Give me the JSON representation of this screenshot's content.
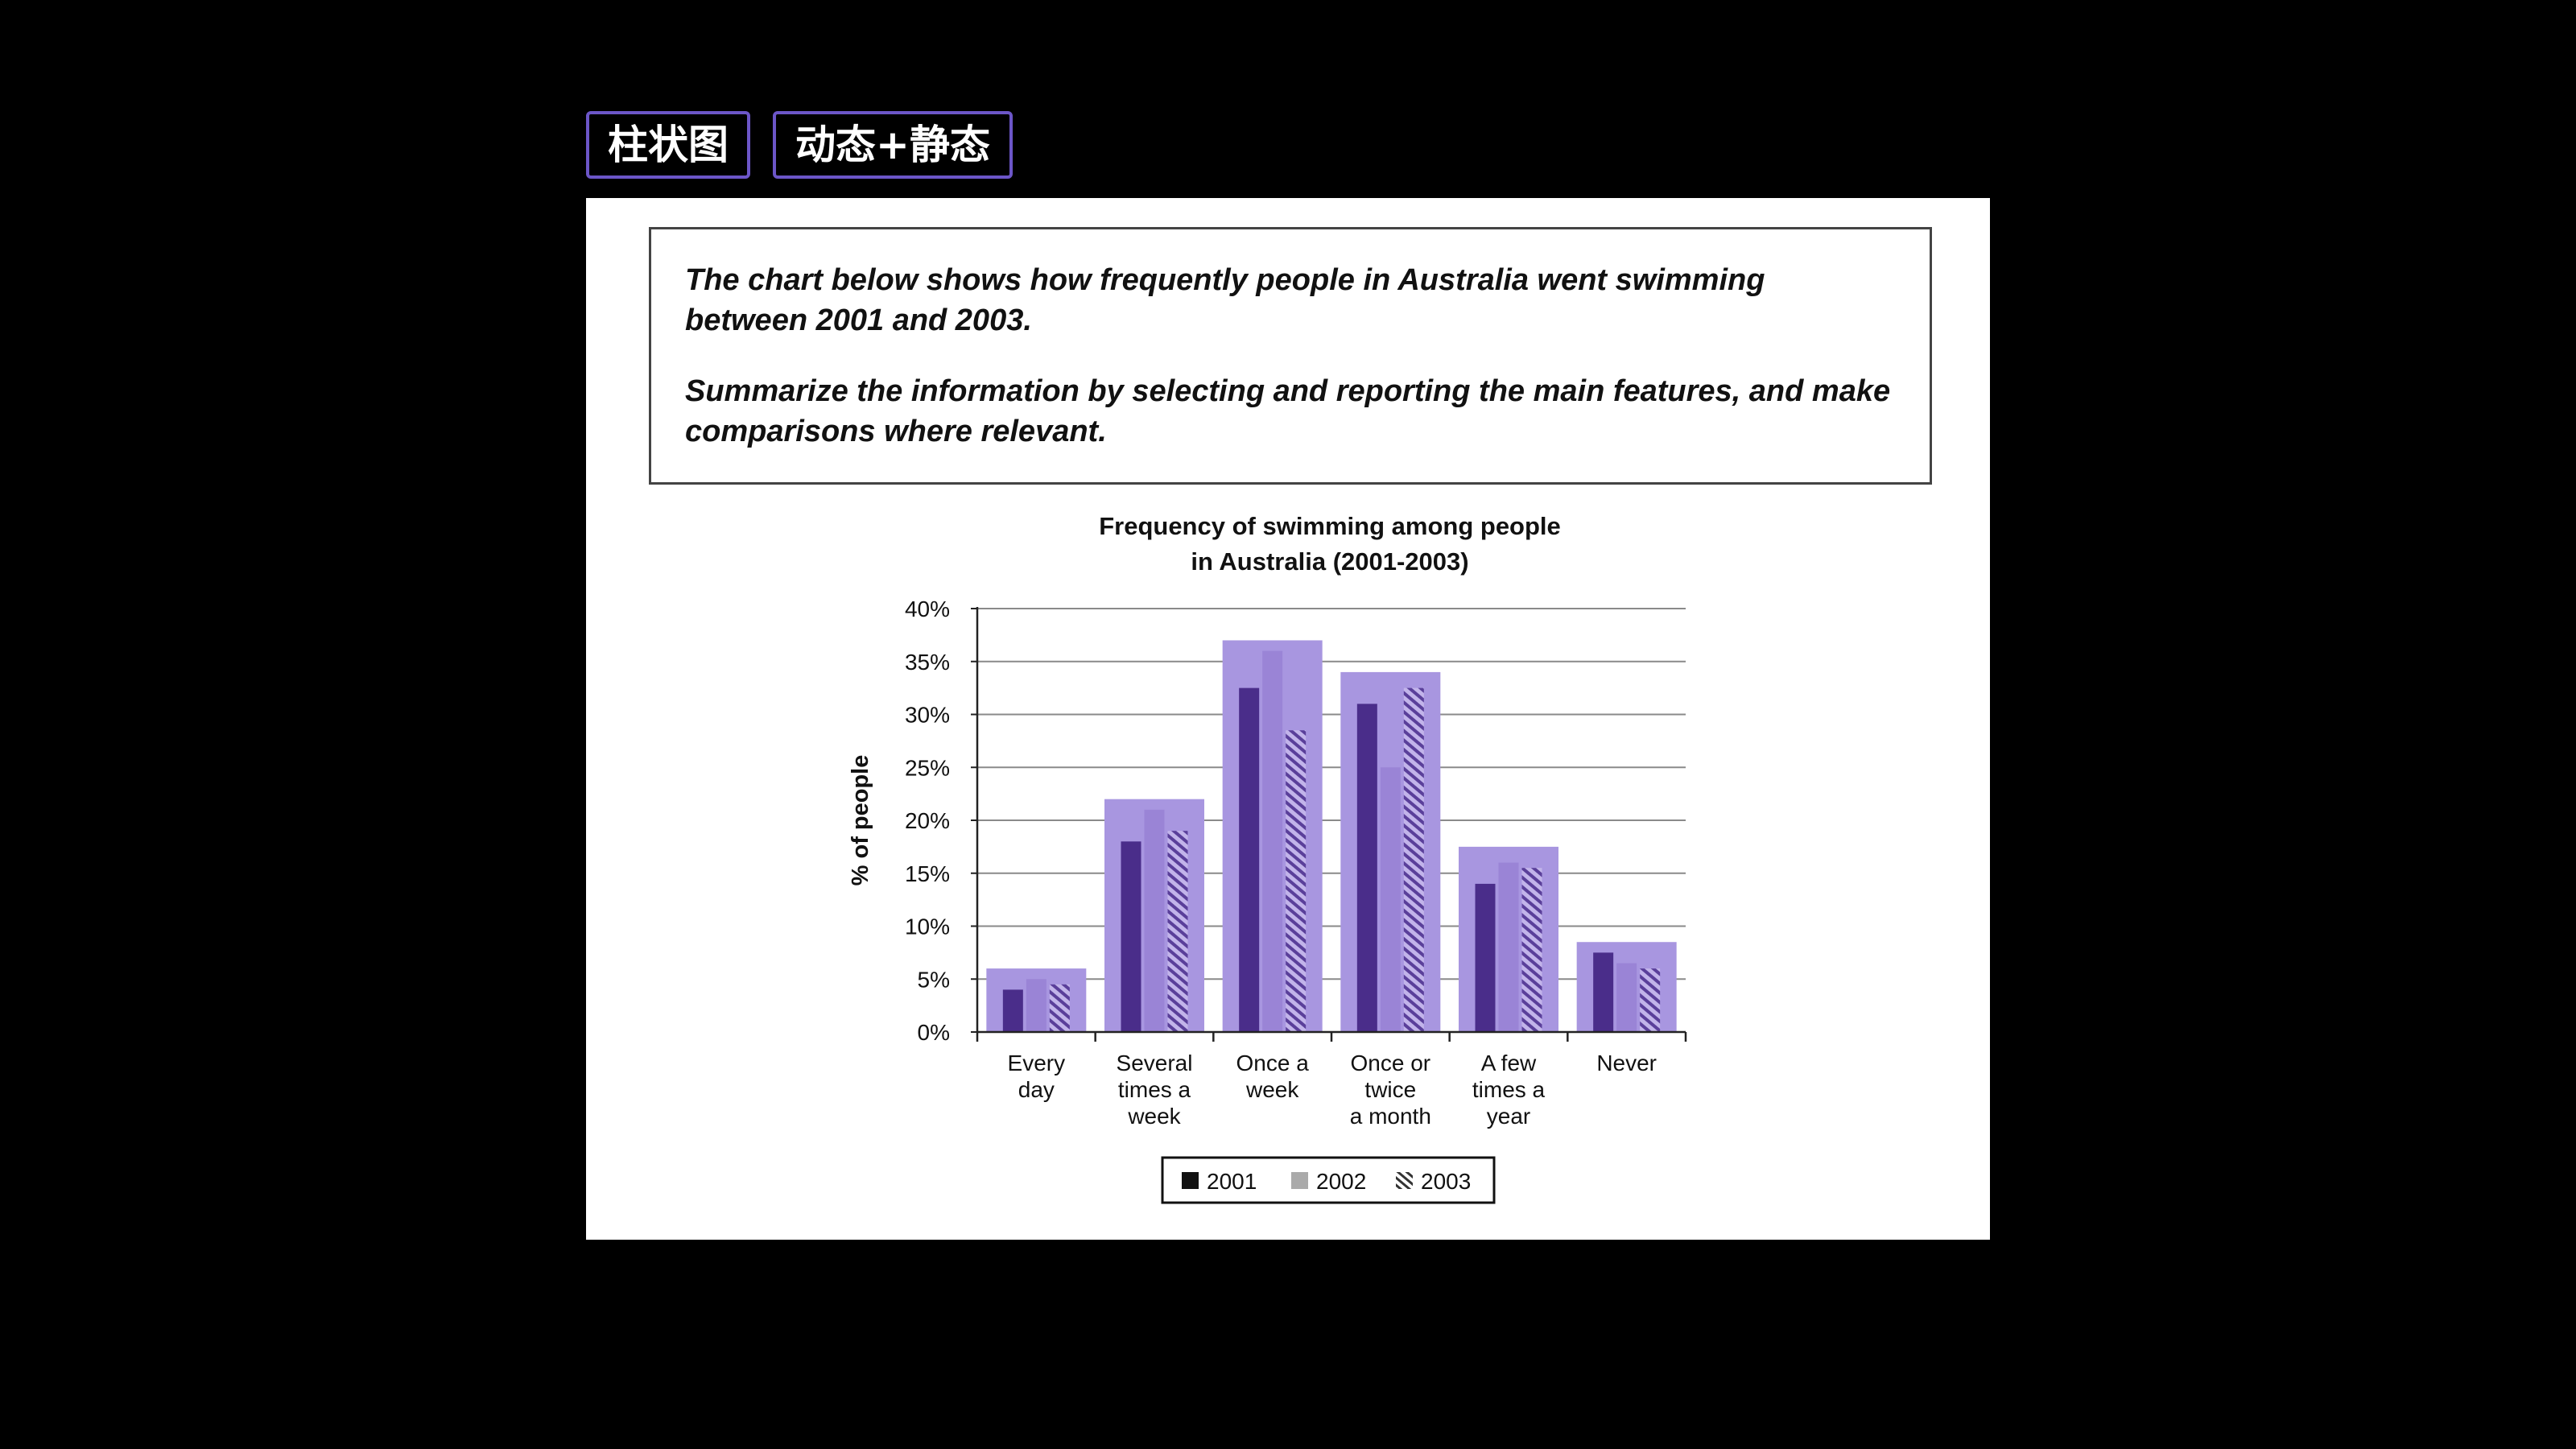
{
  "tags": {
    "chart_type": "柱状图",
    "variant": "动态+静态"
  },
  "prompt": {
    "line1": "The chart below shows how frequently people in Australia went swimming between 2001 and 2003.",
    "line2": "Summarize the information by selecting and reporting the main features, and make comparisons where relevant."
  },
  "colors": {
    "shadow_bar": "#a896e0",
    "bar_2001": "#4a2d8a",
    "bar_2002": "#9a84d6",
    "bar_2003_stripe": "#5a3f9a",
    "bar_2003_bg": "#c2b4ea"
  },
  "chart_data": {
    "type": "bar",
    "title": [
      "Frequency of swimming among people",
      "in Australia (2001-2003)"
    ],
    "xlabel": "",
    "ylabel": "% of people",
    "ylim": [
      0,
      40
    ],
    "yticks": [
      0,
      5,
      10,
      15,
      20,
      25,
      30,
      35,
      40
    ],
    "ytick_labels": [
      "0%",
      "5%",
      "10%",
      "15%",
      "20%",
      "25%",
      "30%",
      "35%",
      "40%"
    ],
    "grid": true,
    "legend_position": "bottom",
    "categories": [
      [
        "Every",
        "day"
      ],
      [
        "Several",
        "times a",
        "week"
      ],
      [
        "Once a",
        "week"
      ],
      [
        "Once or",
        "twice",
        "a month"
      ],
      [
        "A few",
        "times a",
        "year"
      ],
      [
        "Never"
      ]
    ],
    "series": [
      {
        "name": "2001",
        "values": [
          4,
          18,
          32.5,
          31,
          14,
          7.5
        ]
      },
      {
        "name": "2002",
        "values": [
          5,
          21,
          36,
          25,
          16,
          6.5
        ]
      },
      {
        "name": "2003",
        "values": [
          4.5,
          19,
          28.5,
          32.5,
          15.5,
          6
        ]
      }
    ],
    "group_max": [
      6,
      22,
      37,
      34,
      17.5,
      8.5
    ]
  }
}
